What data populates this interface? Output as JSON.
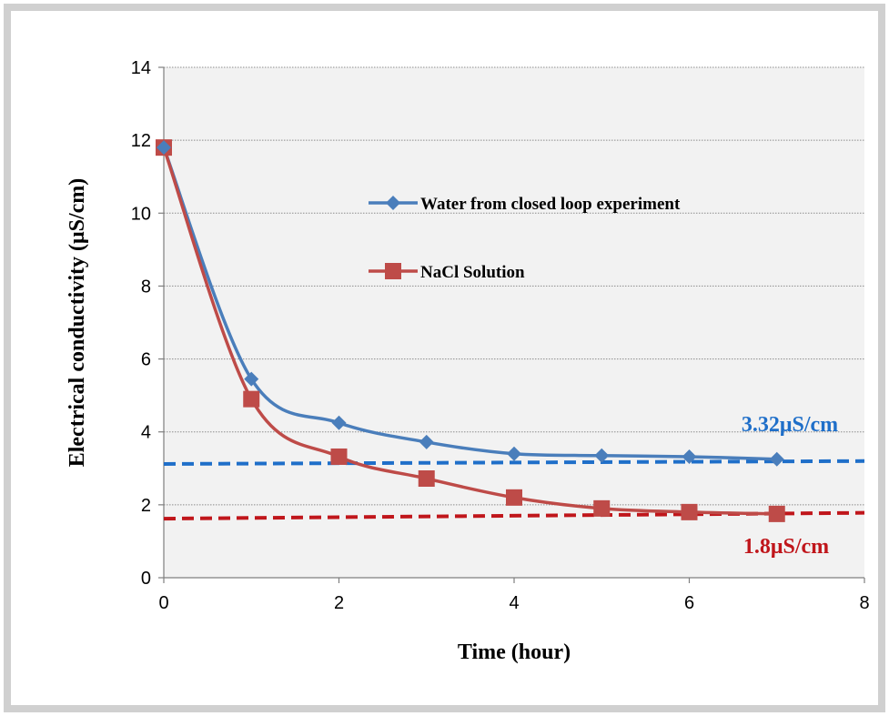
{
  "chart_data": {
    "type": "line",
    "title": "",
    "xlabel": "Time (hour)",
    "ylabel": "Electrical conductivity (μS/cm)",
    "xlim": [
      0,
      8
    ],
    "ylim": [
      0,
      14
    ],
    "xticks": [
      0,
      2,
      4,
      6,
      8
    ],
    "yticks": [
      0,
      2,
      4,
      6,
      8,
      10,
      12,
      14
    ],
    "grid": "horizontal",
    "legend_position": "inside-top-center",
    "series": [
      {
        "name": "Water from closed loop experiment",
        "color": "#4a7ebb",
        "marker": "diamond",
        "x": [
          0,
          1,
          2,
          3,
          4,
          5,
          6,
          7
        ],
        "y": [
          11.8,
          5.45,
          4.25,
          3.72,
          3.4,
          3.35,
          3.32,
          3.25
        ]
      },
      {
        "name": "NaCl Solution",
        "color": "#be4b48",
        "marker": "square",
        "x": [
          0,
          1,
          2,
          3,
          4,
          5,
          6,
          7
        ],
        "y": [
          11.8,
          4.9,
          3.32,
          2.72,
          2.2,
          1.9,
          1.8,
          1.75
        ]
      }
    ],
    "reference_lines": [
      {
        "label": "3.32μS/cm",
        "color": "#1f6fc9",
        "x": [
          0,
          8
        ],
        "y": [
          3.12,
          3.2
        ]
      },
      {
        "label": "1.8μS/cm",
        "color": "#c0161b",
        "x": [
          0,
          8
        ],
        "y": [
          1.62,
          1.78
        ]
      }
    ]
  }
}
